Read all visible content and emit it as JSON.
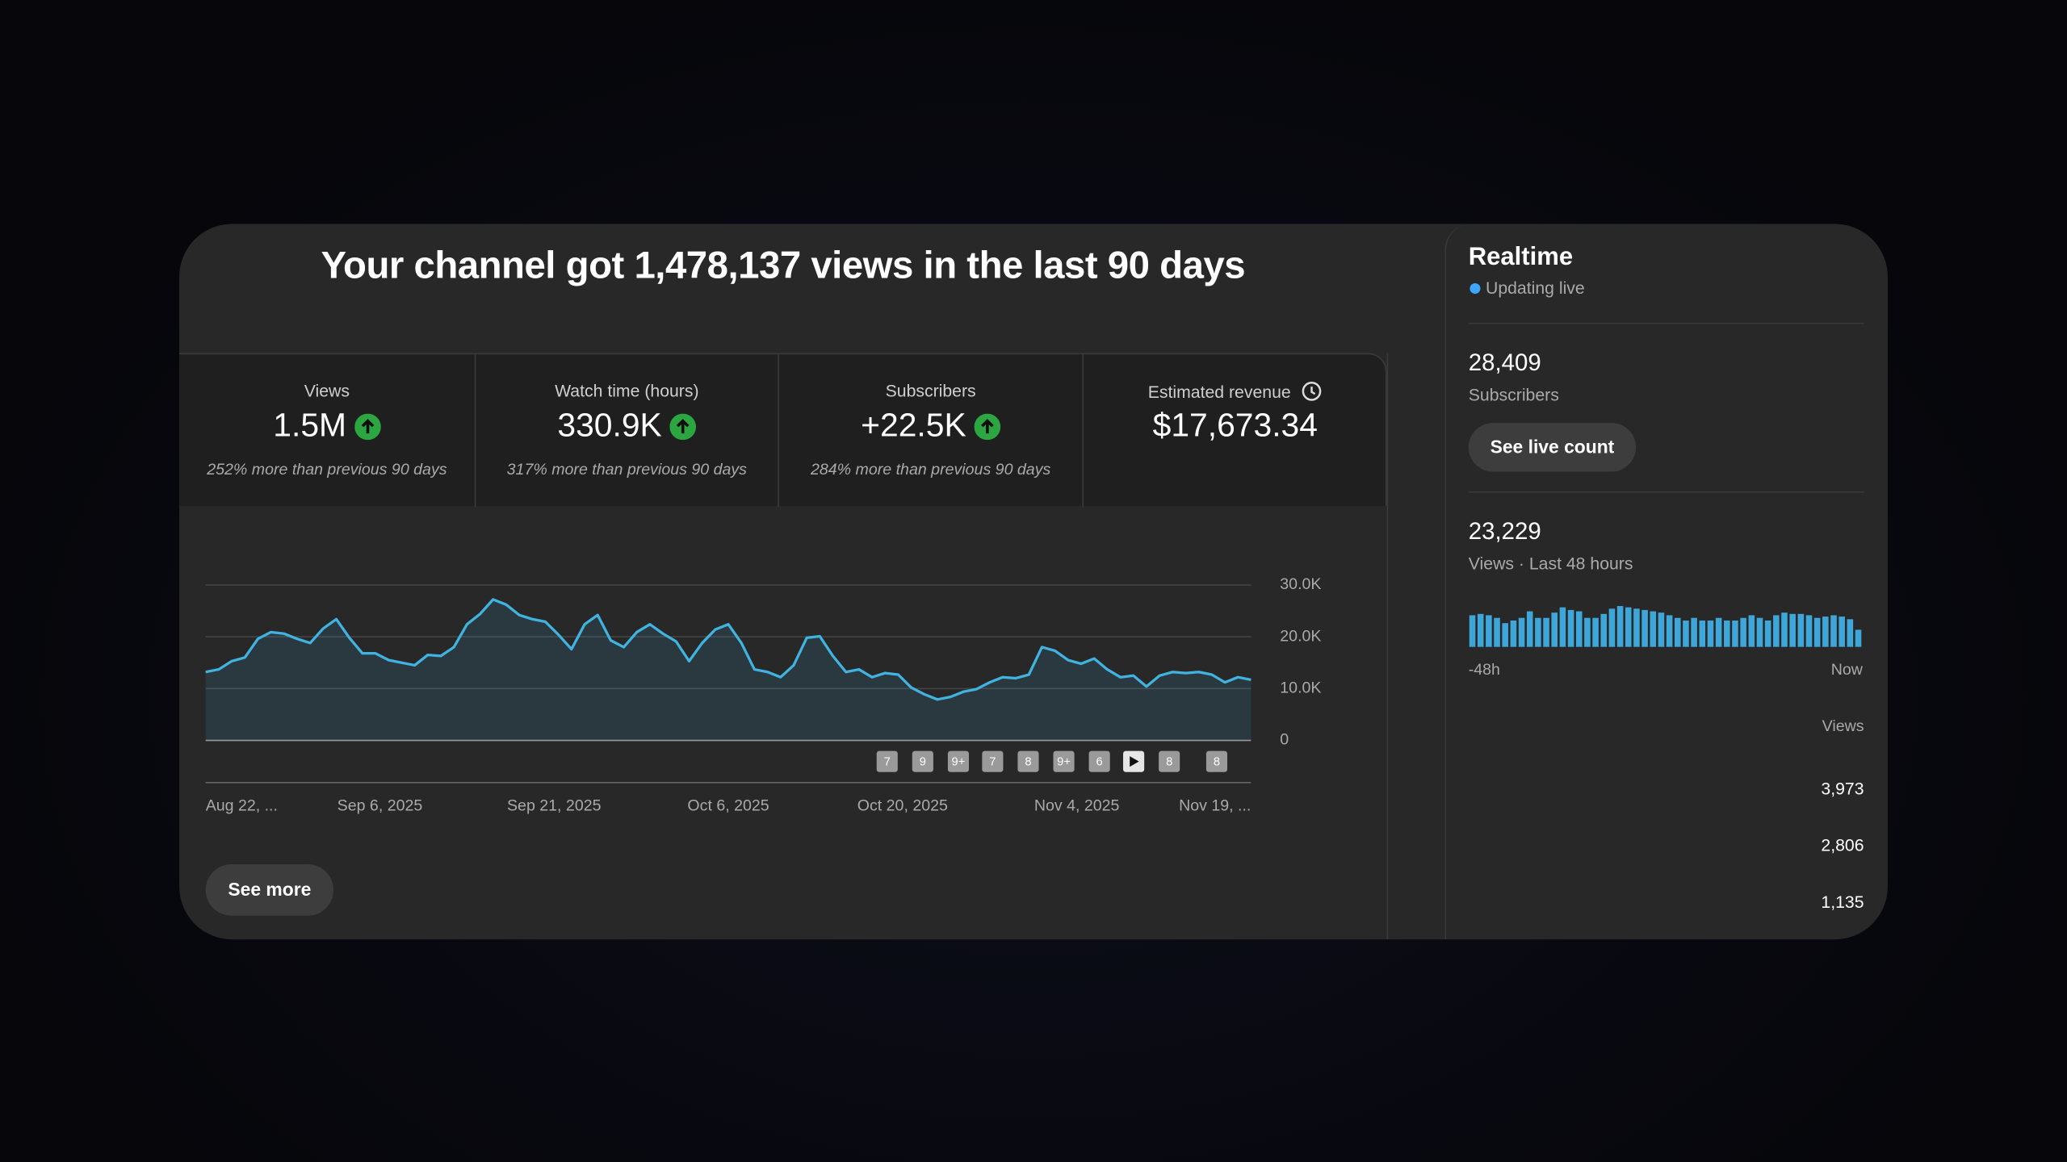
{
  "header": {
    "title": "Your channel got 1,478,137 views in the last 90 days"
  },
  "metrics": [
    {
      "label": "Views",
      "value": "1.5M",
      "note": "252% more than previous 90 days"
    },
    {
      "label": "Watch time (hours)",
      "value": "330.9K",
      "note": "317% more than previous 90 days"
    },
    {
      "label": "Subscribers",
      "value": "+22.5K",
      "note": "284% more than previous 90 days"
    },
    {
      "label": "Estimated revenue",
      "value": "$17,673.34"
    }
  ],
  "chart_data": [
    {
      "type": "line",
      "color": "#41b3e0",
      "values": [
        13200,
        13700,
        15300,
        16000,
        19600,
        20900,
        20600,
        19600,
        18800,
        21600,
        23400,
        19800,
        16800,
        16800,
        15500,
        15000,
        14500,
        16500,
        16300,
        18000,
        22400,
        24400,
        27200,
        26200,
        24200,
        23400,
        22900,
        20400,
        17600,
        22400,
        24200,
        19300,
        18000,
        20900,
        22400,
        20600,
        19100,
        15300,
        18800,
        21400,
        22400,
        18800,
        13700,
        13200,
        12200,
        14500,
        19800,
        20100,
        16300,
        13200,
        13700,
        12200,
        13000,
        12700,
        10200,
        8900,
        7900,
        8400,
        9400,
        9900,
        11200,
        12200,
        12000,
        12700,
        18000,
        17300,
        15500,
        14800,
        15800,
        13700,
        12200,
        12500,
        10400,
        12500,
        13200,
        13000,
        13200,
        12700,
        11200,
        12200,
        11700
      ],
      "x_labels": [
        "Aug 22, ...",
        "Sep 6, 2025",
        "Sep 21, 2025",
        "Oct 6, 2025",
        "Oct 20, 2025",
        "Nov 4, 2025",
        "Nov 19, ..."
      ],
      "ylim": [
        0,
        30000
      ],
      "yticks": [
        0,
        {
          "value": 10000,
          "label": "10.0K"
        },
        {
          "value": 20000,
          "label": "20.0K"
        },
        {
          "value": 30000,
          "label": "30.0K"
        }
      ],
      "grid": true,
      "annotations": [
        "7",
        "9",
        "9+",
        "7",
        "8",
        "9+",
        "6",
        "8",
        "8"
      ]
    },
    {
      "type": "bar",
      "color": "#3ea6d9",
      "values": [
        480,
        500,
        480,
        440,
        360,
        400,
        440,
        540,
        440,
        440,
        520,
        600,
        560,
        540,
        440,
        440,
        500,
        580,
        620,
        600,
        580,
        560,
        540,
        520,
        480,
        440,
        400,
        440,
        400,
        400,
        440,
        400,
        400,
        440,
        480,
        440,
        400,
        480,
        520,
        500,
        500,
        480,
        440,
        460,
        480,
        460,
        420,
        260
      ],
      "x_labels": [
        "-48h",
        "Now"
      ]
    }
  ],
  "see_more": "See more",
  "realtime": {
    "title": "Realtime",
    "status": "Updating live",
    "subscribers": {
      "value": "28,409",
      "label": "Subscribers"
    },
    "button": "See live count",
    "views": {
      "value": "23,229",
      "label": "Views · Last 48 hours"
    },
    "top_content": {
      "header": "Views",
      "values": [
        "3,973",
        "2,806",
        "1,135"
      ]
    }
  }
}
